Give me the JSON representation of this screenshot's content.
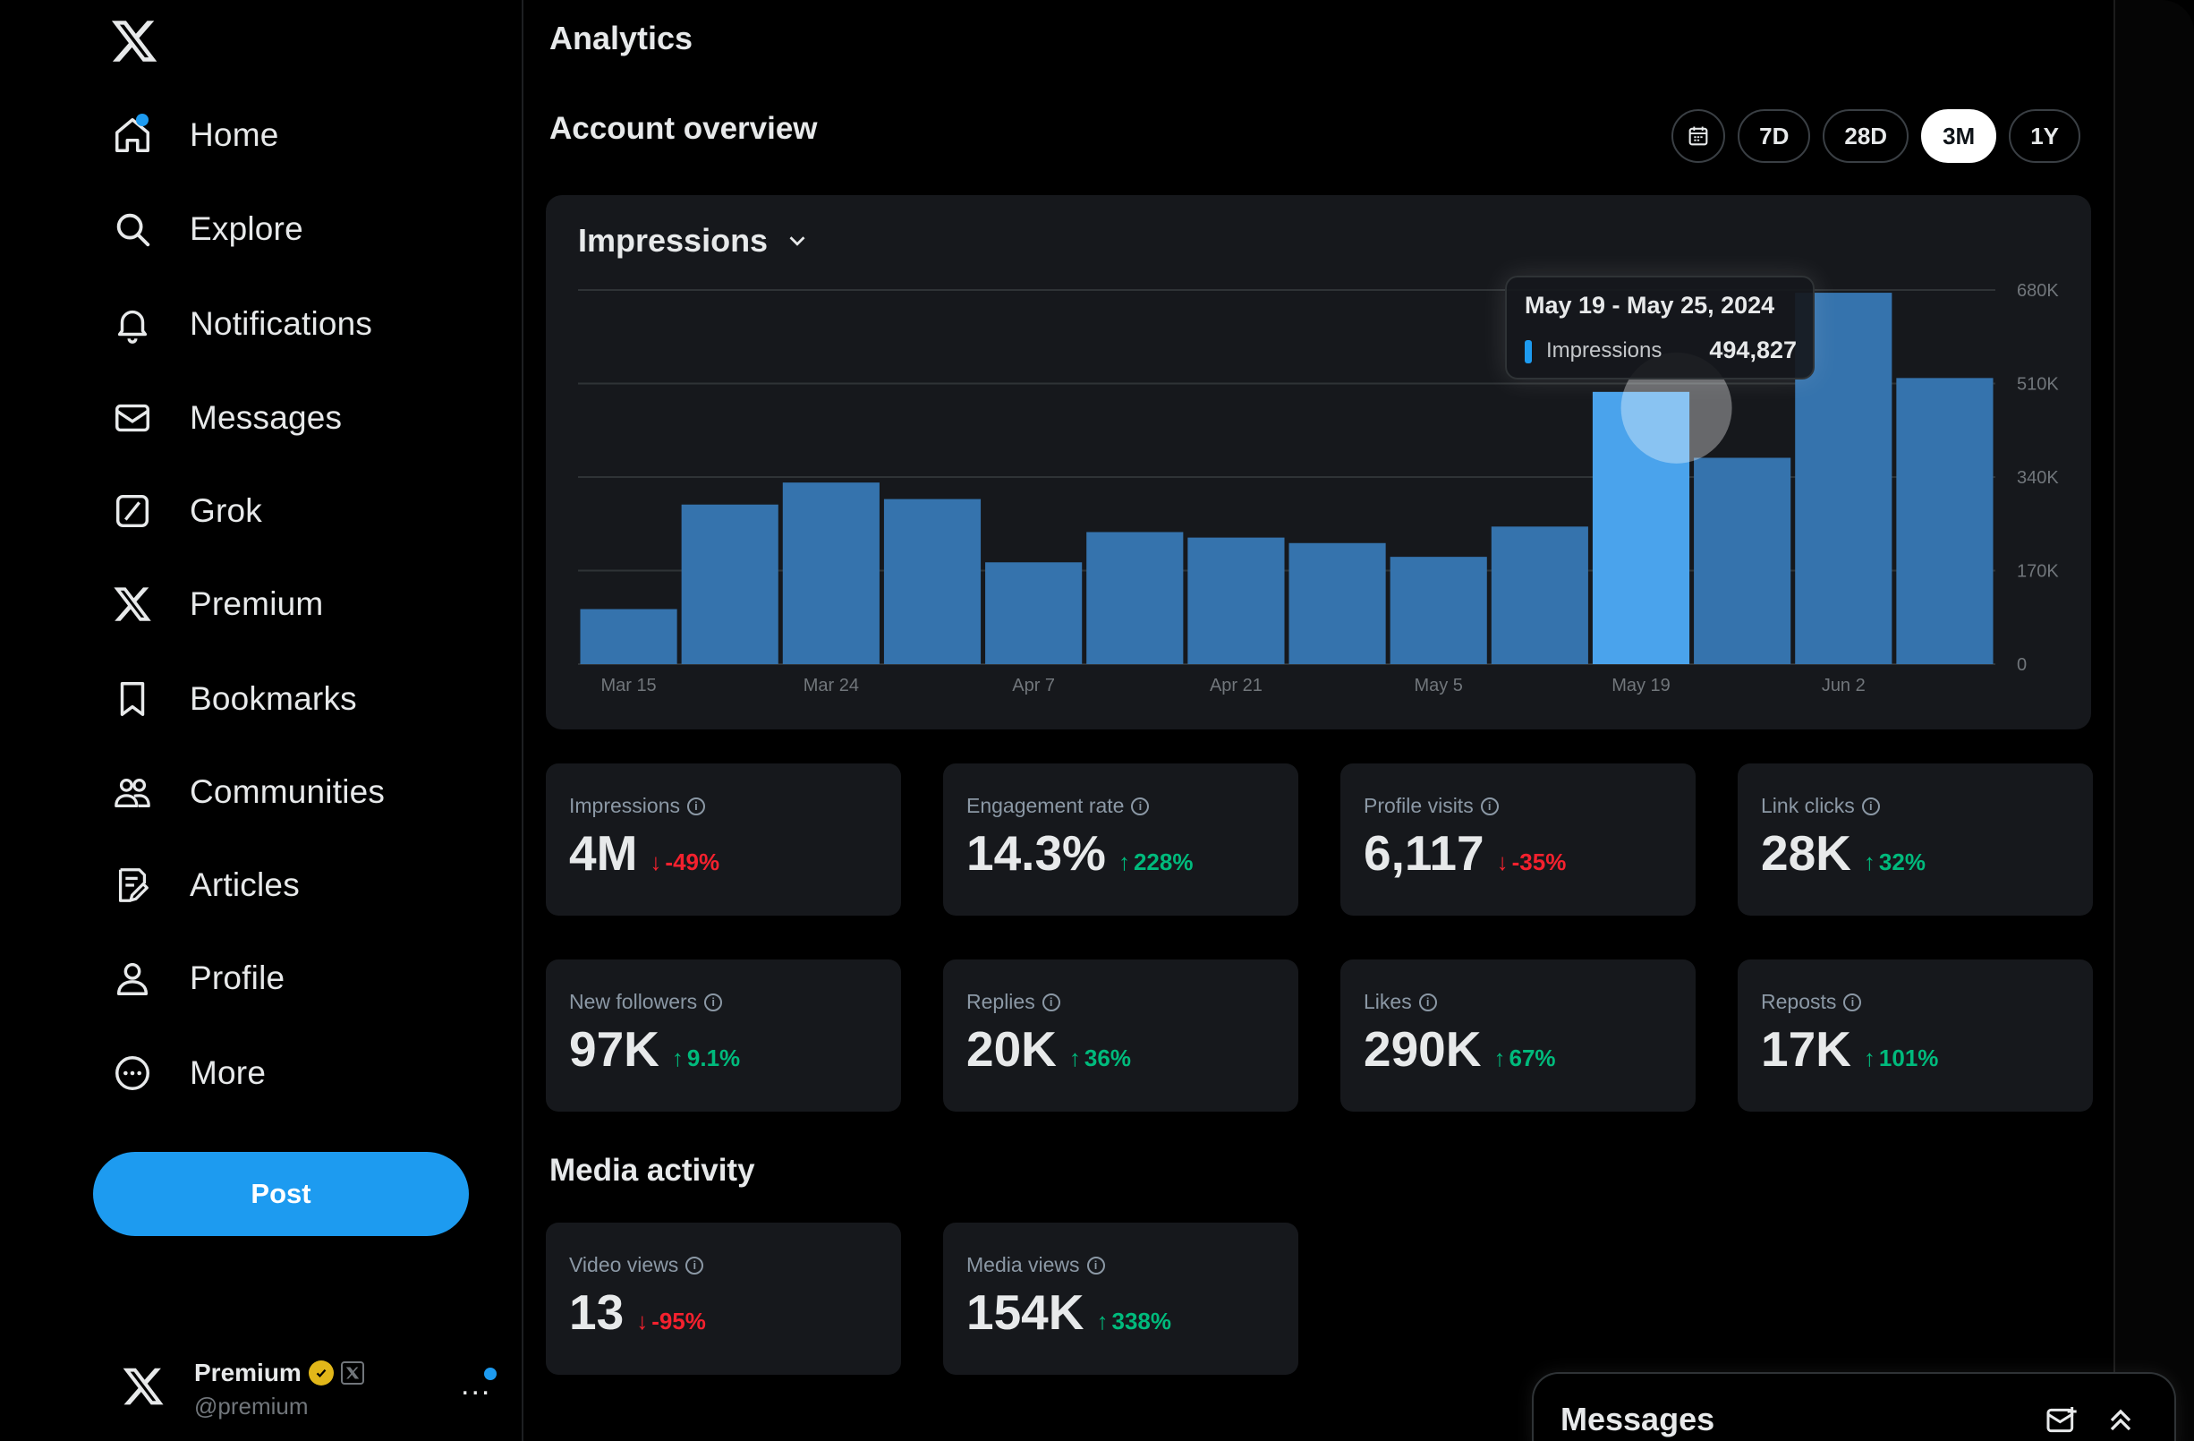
{
  "sidebar": {
    "logo": "x-logo-icon",
    "items": [
      {
        "label": "Home",
        "icon": "home-icon"
      },
      {
        "label": "Explore",
        "icon": "search-icon"
      },
      {
        "label": "Notifications",
        "icon": "bell-icon"
      },
      {
        "label": "Messages",
        "icon": "mail-icon"
      },
      {
        "label": "Grok",
        "icon": "grok-icon"
      },
      {
        "label": "Premium",
        "icon": "x-logo-icon"
      },
      {
        "label": "Bookmarks",
        "icon": "bookmark-icon"
      },
      {
        "label": "Communities",
        "icon": "people-icon"
      },
      {
        "label": "Articles",
        "icon": "article-icon"
      },
      {
        "label": "Profile",
        "icon": "person-icon"
      },
      {
        "label": "More",
        "icon": "more-circle-icon"
      }
    ],
    "post_label": "Post",
    "account": {
      "name": "Premium",
      "handle": "@premium",
      "more": "..."
    }
  },
  "main": {
    "page_title": "Analytics",
    "overview_title": "Account overview",
    "ranges": [
      "7D",
      "28D",
      "3M",
      "1Y"
    ],
    "active_range": "3M",
    "chart": {
      "metric": "Impressions",
      "tooltip": {
        "title": "May 19 - May 25, 2024",
        "label": "Impressions",
        "value": "494,827"
      }
    },
    "stats": [
      {
        "label": "Impressions",
        "value": "4M",
        "delta": "-49%",
        "dir": "down"
      },
      {
        "label": "Engagement rate",
        "value": "14.3%",
        "delta": "228%",
        "dir": "up"
      },
      {
        "label": "Profile visits",
        "value": "6,117",
        "delta": "-35%",
        "dir": "down"
      },
      {
        "label": "Link clicks",
        "value": "28K",
        "delta": "32%",
        "dir": "up"
      },
      {
        "label": "New followers",
        "value": "97K",
        "delta": "9.1%",
        "dir": "up"
      },
      {
        "label": "Replies",
        "value": "20K",
        "delta": "36%",
        "dir": "up"
      },
      {
        "label": "Likes",
        "value": "290K",
        "delta": "67%",
        "dir": "up"
      },
      {
        "label": "Reposts",
        "value": "17K",
        "delta": "101%",
        "dir": "up"
      }
    ],
    "media_title": "Media activity",
    "media_stats": [
      {
        "label": "Video views",
        "value": "13",
        "delta": "-95%",
        "dir": "down"
      },
      {
        "label": "Media views",
        "value": "154K",
        "delta": "338%",
        "dir": "up"
      }
    ]
  },
  "messages_drawer": {
    "title": "Messages"
  },
  "chart_data": {
    "type": "bar",
    "categories": [
      "Mar 15",
      "",
      "Mar 24",
      "",
      "Apr 7",
      "",
      "Apr 21",
      "",
      "May 5",
      "",
      "May 19",
      "",
      "Jun 2",
      ""
    ],
    "tick_labels": [
      "Mar 15",
      "Mar 24",
      "Apr 7",
      "Apr 21",
      "May 5",
      "May 19",
      "Jun 2"
    ],
    "values": [
      100000,
      290000,
      330000,
      300000,
      185000,
      240000,
      230000,
      220000,
      195000,
      250000,
      494827,
      375000,
      675000,
      520000
    ],
    "highlight_index": 10,
    "y_ticks": [
      "680K",
      "510K",
      "340K",
      "170K",
      "0"
    ],
    "ylim": [
      0,
      680000
    ],
    "title": "Impressions",
    "colors": {
      "bar": "#3573ad",
      "highlight": "#4aa3ec",
      "grid": "#2f3336"
    }
  }
}
